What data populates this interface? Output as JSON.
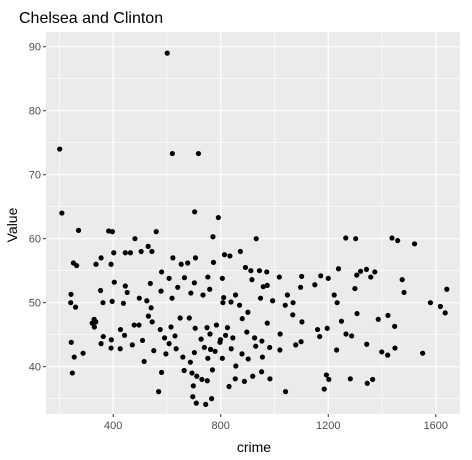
{
  "chart_data": {
    "type": "scatter",
    "title": "Chelsea and Clinton",
    "xlabel": "crime",
    "ylabel": "Value",
    "xlim": [
      150,
      1690
    ],
    "ylim": [
      32.6,
      92.3
    ],
    "x_ticks": [
      400,
      800,
      1200,
      1600
    ],
    "x_tick_labels": [
      "400",
      "800",
      "1200",
      "1600"
    ],
    "y_ticks": [
      40,
      50,
      60,
      70,
      80,
      90
    ],
    "y_tick_labels": [
      "40",
      "50",
      "60",
      "70",
      "80",
      "90"
    ],
    "grid": true,
    "panel_background": "#ebebeb",
    "grid_color": "#ffffff",
    "point_color": "#000000",
    "points": [
      [
        601,
        89.0
      ],
      [
        201,
        74.0
      ],
      [
        620,
        73.3
      ],
      [
        717,
        73.3
      ],
      [
        209,
        64.0
      ],
      [
        703,
        64.2
      ],
      [
        791,
        63.3
      ],
      [
        271,
        61.3
      ],
      [
        383,
        61.2
      ],
      [
        397,
        61.1
      ],
      [
        481,
        60.0
      ],
      [
        560,
        61.1
      ],
      [
        771,
        60.3
      ],
      [
        932,
        60.0
      ],
      [
        1265,
        60.1
      ],
      [
        1302,
        60.0
      ],
      [
        1437,
        60.1
      ],
      [
        1458,
        59.7
      ],
      [
        1521,
        59.2
      ],
      [
        252,
        56.2
      ],
      [
        264,
        55.8
      ],
      [
        336,
        56.0
      ],
      [
        355,
        57.0
      ],
      [
        392,
        56.0
      ],
      [
        402,
        57.8
      ],
      [
        445,
        57.8
      ],
      [
        464,
        57.8
      ],
      [
        504,
        58.0
      ],
      [
        530,
        58.8
      ],
      [
        544,
        58.0
      ],
      [
        622,
        57.0
      ],
      [
        653,
        56.0
      ],
      [
        677,
        56.2
      ],
      [
        706,
        57.0
      ],
      [
        773,
        56.3
      ],
      [
        814,
        57.5
      ],
      [
        834,
        57.3
      ],
      [
        873,
        58.0
      ],
      [
        892,
        55.5
      ],
      [
        912,
        55.0
      ],
      [
        944,
        55.0
      ],
      [
        971,
        54.8
      ],
      [
        1018,
        54.0
      ],
      [
        1101,
        54.1
      ],
      [
        1172,
        54.2
      ],
      [
        1238,
        55.3
      ],
      [
        1320,
        54.9
      ],
      [
        1342,
        55.2
      ],
      [
        1358,
        54.0
      ],
      [
        243,
        51.3
      ],
      [
        242,
        50.0
      ],
      [
        260,
        49.3
      ],
      [
        329,
        47.4
      ],
      [
        335,
        47.0
      ],
      [
        353,
        51.9
      ],
      [
        362,
        50.0
      ],
      [
        396,
        50.2
      ],
      [
        404,
        53.2
      ],
      [
        438,
        49.9
      ],
      [
        445,
        52.6
      ],
      [
        452,
        51.6
      ],
      [
        497,
        50.7
      ],
      [
        525,
        50.3
      ],
      [
        538,
        53.0
      ],
      [
        541,
        49.2
      ],
      [
        578,
        51.8
      ],
      [
        580,
        54.8
      ],
      [
        608,
        53.8
      ],
      [
        619,
        50.7
      ],
      [
        640,
        52.4
      ],
      [
        665,
        53.9
      ],
      [
        689,
        51.5
      ],
      [
        702,
        53.1
      ],
      [
        734,
        51.2
      ],
      [
        752,
        54.0
      ],
      [
        759,
        52.1
      ],
      [
        806,
        53.8
      ],
      [
        808,
        50.0
      ],
      [
        811,
        50.8
      ],
      [
        838,
        50.1
      ],
      [
        855,
        51.2
      ],
      [
        870,
        49.6
      ],
      [
        901,
        48.5
      ],
      [
        916,
        53.6
      ],
      [
        948,
        50.7
      ],
      [
        958,
        52.5
      ],
      [
        973,
        52.7
      ],
      [
        993,
        50.3
      ],
      [
        1040,
        49.6
      ],
      [
        1048,
        51.2
      ],
      [
        1069,
        50.0
      ],
      [
        1097,
        52.4
      ],
      [
        1150,
        52.8
      ],
      [
        1200,
        53.8
      ],
      [
        1222,
        51.2
      ],
      [
        1233,
        50.0
      ],
      [
        1299,
        52.2
      ],
      [
        1306,
        54.3
      ],
      [
        1373,
        54.8
      ],
      [
        1475,
        53.6
      ],
      [
        1482,
        51.6
      ],
      [
        1580,
        50.0
      ],
      [
        1617,
        49.4
      ],
      [
        330,
        46.2
      ],
      [
        355,
        43.6
      ],
      [
        363,
        44.7
      ],
      [
        393,
        44.2
      ],
      [
        427,
        45.8
      ],
      [
        442,
        44.9
      ],
      [
        478,
        46.5
      ],
      [
        496,
        46.5
      ],
      [
        509,
        44.1
      ],
      [
        531,
        47.9
      ],
      [
        545,
        47.0
      ],
      [
        575,
        45.8
      ],
      [
        591,
        44.5
      ],
      [
        615,
        46.2
      ],
      [
        630,
        44.8
      ],
      [
        649,
        47.6
      ],
      [
        683,
        47.6
      ],
      [
        705,
        46.0
      ],
      [
        727,
        44.3
      ],
      [
        749,
        46.1
      ],
      [
        760,
        45.1
      ],
      [
        784,
        46.5
      ],
      [
        799,
        44.2
      ],
      [
        818,
        44.9
      ],
      [
        825,
        46.1
      ],
      [
        845,
        44.5
      ],
      [
        880,
        47.5
      ],
      [
        897,
        45.4
      ],
      [
        926,
        44.5
      ],
      [
        953,
        44.0
      ],
      [
        973,
        46.8
      ],
      [
        1021,
        45.1
      ],
      [
        1068,
        48.1
      ],
      [
        1102,
        47.0
      ],
      [
        1160,
        45.8
      ],
      [
        1196,
        46.0
      ],
      [
        1249,
        47.1
      ],
      [
        1266,
        45.1
      ],
      [
        1307,
        48.3
      ],
      [
        1386,
        47.4
      ],
      [
        1422,
        48.0
      ],
      [
        1447,
        46.3
      ],
      [
        1635,
        48.4
      ],
      [
        1641,
        52.1
      ],
      [
        244,
        43.8
      ],
      [
        255,
        41.5
      ],
      [
        288,
        42.1
      ],
      [
        322,
        46.8
      ],
      [
        392,
        42.9
      ],
      [
        426,
        42.8
      ],
      [
        471,
        43.4
      ],
      [
        515,
        40.8
      ],
      [
        551,
        42.5
      ],
      [
        596,
        42.0
      ],
      [
        608,
        43.6
      ],
      [
        634,
        42.8
      ],
      [
        659,
        41.5
      ],
      [
        687,
        40.7
      ],
      [
        702,
        42.2
      ],
      [
        739,
        43.0
      ],
      [
        752,
        41.3
      ],
      [
        762,
        42.7
      ],
      [
        779,
        42.4
      ],
      [
        797,
        43.8
      ],
      [
        806,
        41.3
      ],
      [
        839,
        42.8
      ],
      [
        856,
        40.1
      ],
      [
        879,
        42.0
      ],
      [
        902,
        41.2
      ],
      [
        930,
        43.2
      ],
      [
        955,
        41.5
      ],
      [
        982,
        43.0
      ],
      [
        1020,
        42.6
      ],
      [
        1079,
        43.4
      ],
      [
        1099,
        43.9
      ],
      [
        1168,
        44.7
      ],
      [
        1231,
        42.6
      ],
      [
        1287,
        44.8
      ],
      [
        1343,
        43.5
      ],
      [
        1399,
        42.3
      ],
      [
        1421,
        41.8
      ],
      [
        1448,
        42.9
      ],
      [
        1551,
        42.1
      ],
      [
        248,
        39.0
      ],
      [
        569,
        36.1
      ],
      [
        580,
        39.1
      ],
      [
        664,
        39.4
      ],
      [
        693,
        39.0
      ],
      [
        698,
        37.0
      ],
      [
        711,
        38.5
      ],
      [
        730,
        38.0
      ],
      [
        750,
        37.8
      ],
      [
        769,
        39.5
      ],
      [
        831,
        36.9
      ],
      [
        854,
        38.1
      ],
      [
        888,
        37.7
      ],
      [
        919,
        38.5
      ],
      [
        952,
        39.2
      ],
      [
        983,
        38.1
      ],
      [
        1041,
        36.1
      ],
      [
        1185,
        36.5
      ],
      [
        1193,
        38.7
      ],
      [
        1202,
        38.0
      ],
      [
        1282,
        38.1
      ],
      [
        1345,
        37.4
      ],
      [
        1365,
        38.0
      ],
      [
        696,
        35.3
      ],
      [
        709,
        34.3
      ],
      [
        744,
        34.1
      ],
      [
        766,
        35.0
      ]
    ]
  }
}
